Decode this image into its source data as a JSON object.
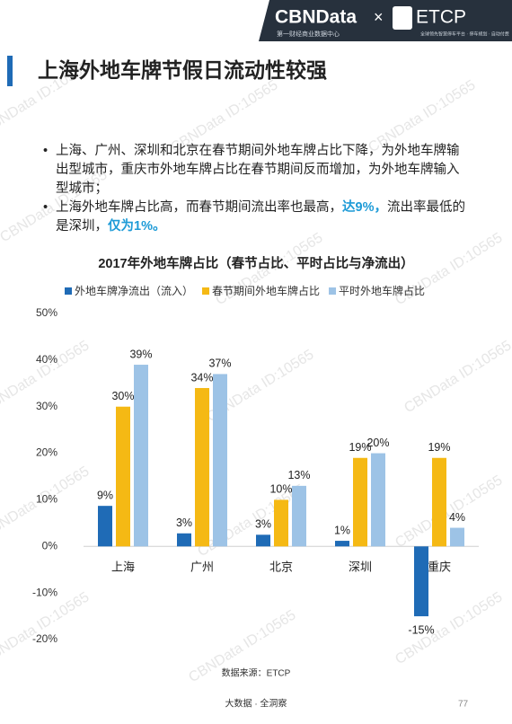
{
  "header": {
    "brand": "CBNData",
    "times": "×",
    "partner": "ETCP",
    "brand_sub": "第一财经商业数据中心",
    "partner_sub": "全球领先智慧停车平台 · 停车规划 · 自动付费"
  },
  "page_title": "上海外地车牌节假日流动性较强",
  "bullets": [
    {
      "text": "上海、广州、深圳和北京在春节期间外地车牌占比下降，为外地车牌输出型城市，重庆市外地车牌占比在春节期间反而增加，为外地车牌输入型城市；"
    },
    {
      "text": "上海外地车牌占比高，而春节期间流出率也最高，",
      "highlight": "达9%，",
      "text2": "流出率最低的是深圳，",
      "highlight2": "仅为1%。"
    }
  ],
  "chart_data": {
    "type": "bar",
    "title": "2017年外地车牌占比（春节占比、平时占比与净流出）",
    "categories": [
      "上海",
      "广州",
      "北京",
      "深圳",
      "重庆"
    ],
    "series": [
      {
        "name": "外地车牌净流出（流入）",
        "color": "#1f6bb6",
        "values": [
          8.7,
          2.8,
          2.5,
          1.2,
          -15
        ],
        "value_labels": [
          "9%",
          "3%",
          "3%",
          "1%",
          "-15%"
        ]
      },
      {
        "name": "春节期间外地车牌占比",
        "color": "#f5b914",
        "values": [
          30,
          34,
          10,
          19,
          19
        ],
        "value_labels": [
          "30%",
          "34%",
          "10%",
          "19%",
          "19%"
        ]
      },
      {
        "name": "平时外地车牌占比",
        "color": "#9dc3e6",
        "values": [
          39,
          37,
          13,
          20,
          4
        ],
        "value_labels": [
          "39%",
          "37%",
          "13%",
          "20%",
          "4%"
        ]
      }
    ],
    "ylim": [
      -20,
      50
    ],
    "yticks": [
      {
        "value": -20,
        "label": "-20%"
      },
      {
        "value": -10,
        "label": "-10%"
      },
      {
        "value": 0,
        "label": "0%"
      },
      {
        "value": 10,
        "label": "10%"
      },
      {
        "value": 20,
        "label": "20%"
      },
      {
        "value": 30,
        "label": "30%"
      },
      {
        "value": 40,
        "label": "40%"
      },
      {
        "value": 50,
        "label": "50%"
      }
    ],
    "grid": false
  },
  "source": "数据来源：ETCP",
  "watermark": "CBNData ID:10565",
  "footer": "大数据 · 全洞察",
  "page_number": "77"
}
